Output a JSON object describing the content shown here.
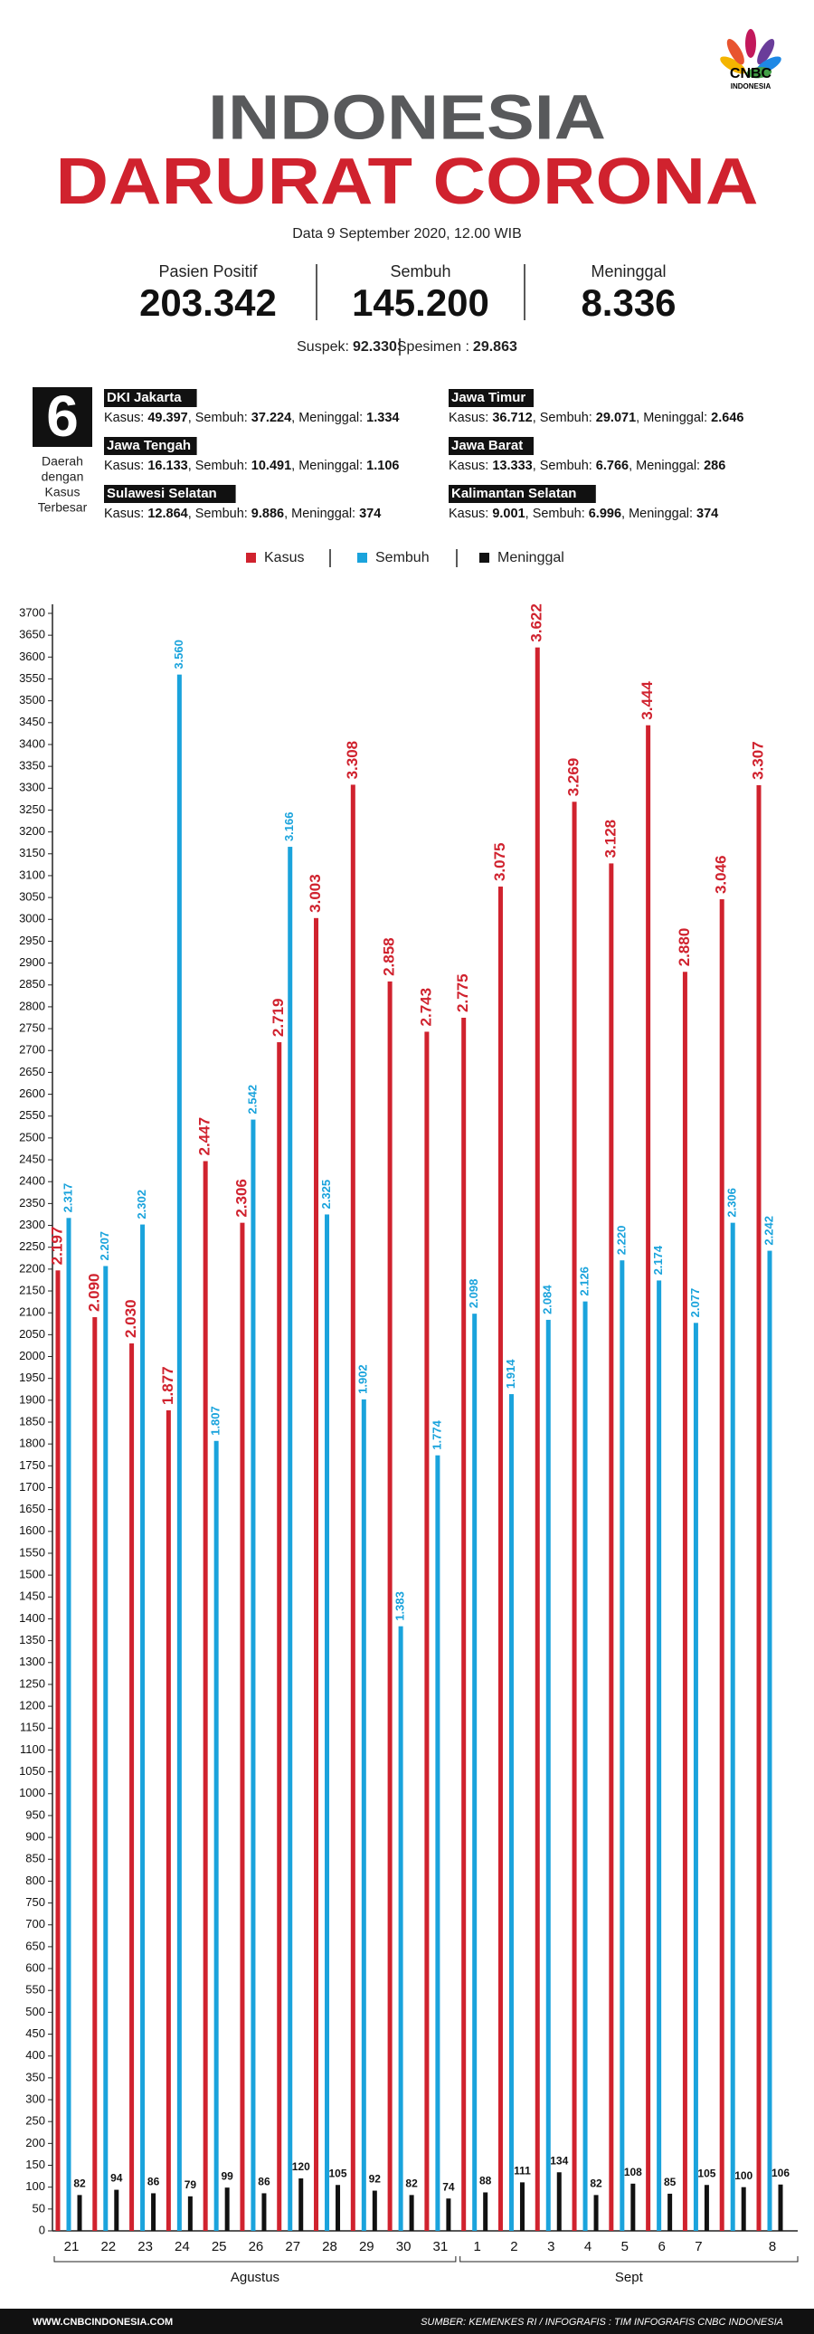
{
  "header": {
    "logo": "CNBC",
    "logo_sub": "INDONESIA",
    "title1": "INDONESIA",
    "title2": "DARURAT CORONA",
    "date": "Data 9 September 2020, 12.00 WIB",
    "stats": [
      {
        "label": "Pasien Positif",
        "value": "203.342"
      },
      {
        "label": "Sembuh",
        "value": "145.200"
      },
      {
        "label": "Meninggal",
        "value": "8.336"
      }
    ],
    "suspek_label": "Suspek:",
    "suspek": "92.330",
    "spesimen_label": "Spesimen :",
    "spesimen": "29.863",
    "six": "6",
    "six_caption": [
      "Daerah",
      "dengan",
      "Kasus",
      "Terbesar"
    ],
    "region_labels": {
      "kasus": "Kasus:",
      "sembuh": ", Sembuh:",
      "meninggal": ", Meninggal:"
    },
    "regions": [
      {
        "name": "DKI Jakarta",
        "kasus": "49.397",
        "sembuh": "37.224",
        "meninggal": "1.334"
      },
      {
        "name": "Jawa Tengah",
        "kasus": "16.133",
        "sembuh": "10.491",
        "meninggal": "1.106"
      },
      {
        "name": "Sulawesi Selatan",
        "kasus": "12.864",
        "sembuh": "9.886",
        "meninggal": "374"
      },
      {
        "name": "Jawa Timur",
        "kasus": "36.712",
        "sembuh": "29.071",
        "meninggal": "2.646"
      },
      {
        "name": "Jawa Barat",
        "kasus": "13.333",
        "sembuh": "6.766",
        "meninggal": "286"
      },
      {
        "name": "Kalimantan Selatan",
        "kasus": "9.001",
        "sembuh": "6.996",
        "meninggal": "374"
      }
    ]
  },
  "chart_data": {
    "type": "bar",
    "categories": [
      "21",
      "22",
      "23",
      "24",
      "25",
      "26",
      "27",
      "28",
      "29",
      "30",
      "31",
      "1",
      "2",
      "3",
      "4",
      "5",
      "6",
      "7",
      null,
      "8"
    ],
    "months": [
      "Agustus",
      "Sept"
    ],
    "series": [
      {
        "name": "Kasus",
        "color": "#d0222e",
        "values": [
          2197,
          2090,
          2030,
          1877,
          2447,
          2306,
          2719,
          3003,
          3308,
          2858,
          2743,
          2775,
          3075,
          3622,
          3269,
          3128,
          3444,
          2880,
          3046,
          3307
        ],
        "value_labels": [
          "2.197",
          "2.090",
          "2.030",
          "1.877",
          "2.447",
          "2.306",
          "2.719",
          "3.003",
          "3.308",
          "2.858",
          "2.743",
          "2.775",
          "3.075",
          "3.622",
          "3.269",
          "3.128",
          "3.444",
          "2.880",
          "3.046",
          "3.307"
        ]
      },
      {
        "name": "Sembuh",
        "color": "#1aa3dc",
        "values": [
          2317,
          2207,
          2302,
          3560,
          1807,
          2542,
          3166,
          2325,
          1902,
          1383,
          1774,
          2098,
          1914,
          2084,
          2126,
          2220,
          2174,
          2077,
          2306,
          2242
        ],
        "value_labels": [
          "2.317",
          "2.207",
          "2.302",
          "3.560",
          "1.807",
          "2.542",
          "3.166",
          "2.325",
          "1.902",
          "1.383",
          "1.774",
          "2.098",
          "1.914",
          "2.084",
          "2.126",
          "2.220",
          "2.174",
          "2.077",
          "2.306",
          "2.242"
        ]
      },
      {
        "name": "Meninggal",
        "color": "#111111",
        "values": [
          82,
          94,
          86,
          79,
          99,
          86,
          120,
          105,
          92,
          82,
          74,
          88,
          111,
          134,
          82,
          108,
          85,
          105,
          100,
          106
        ]
      }
    ],
    "ylim": [
      0,
      3700
    ],
    "yticks": [
      0,
      50,
      100,
      150,
      200,
      250,
      300,
      350,
      400,
      450,
      500,
      550,
      600,
      650,
      700,
      750,
      800,
      850,
      900,
      950,
      1000,
      1050,
      1100,
      1150,
      1200,
      1250,
      1300,
      1350,
      1400,
      1450,
      1500,
      1550,
      1600,
      1650,
      1700,
      1750,
      1800,
      1850,
      1900,
      1950,
      2000,
      2050,
      2100,
      2150,
      2200,
      2250,
      2300,
      2350,
      2400,
      2450,
      2500,
      2550,
      2600,
      2650,
      2700,
      2750,
      2800,
      2850,
      2900,
      2950,
      3000,
      3050,
      3100,
      3150,
      3200,
      3250,
      3300,
      3350,
      3400,
      3450,
      3500,
      3550,
      3600,
      3650,
      3700
    ]
  },
  "footer": {
    "site": "WWW.CNBCINDONESIA.COM",
    "source": "SUMBER: KEMENKES RI / INFOGRAFIS : TIM INFOGRAFIS CNBC INDONESIA"
  }
}
